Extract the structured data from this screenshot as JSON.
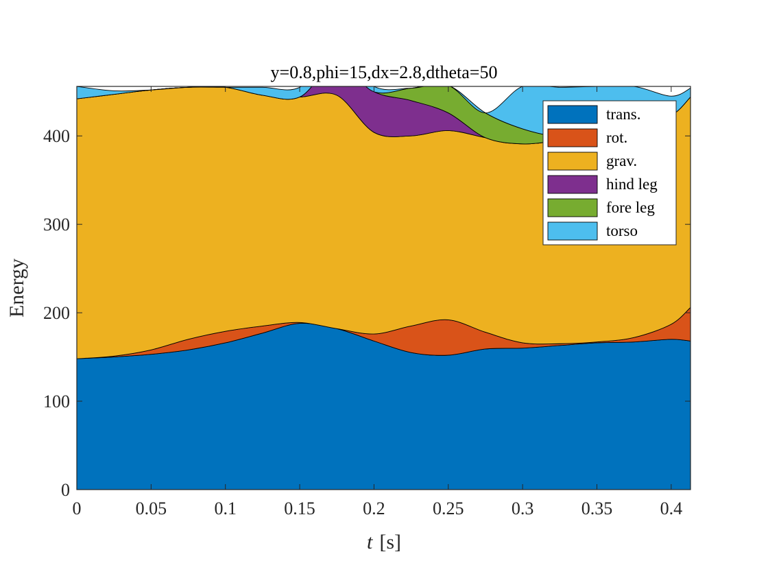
{
  "chart_data": {
    "type": "area",
    "stacked": true,
    "title": "y=0.8,phi=15,dx=2.8,dtheta=50",
    "xlabel_italic": "t",
    "xlabel_unit": "[s]",
    "ylabel": "Energy",
    "xlim": [
      0,
      0.413
    ],
    "ylim": [
      0,
      456
    ],
    "xticks": [
      0,
      0.05,
      0.1,
      0.15,
      0.2,
      0.25,
      0.3,
      0.35,
      0.4
    ],
    "xtick_labels": [
      "0",
      "0.05",
      "0.1",
      "0.15",
      "0.2",
      "0.25",
      "0.3",
      "0.35",
      "0.4"
    ],
    "yticks": [
      0,
      100,
      200,
      300,
      400
    ],
    "ytick_labels": [
      "0",
      "100",
      "200",
      "300",
      "400"
    ],
    "grid": false,
    "legend_position": "top-right",
    "x": [
      0,
      0.025,
      0.05,
      0.075,
      0.1,
      0.125,
      0.15,
      0.175,
      0.2,
      0.225,
      0.25,
      0.275,
      0.3,
      0.325,
      0.35,
      0.375,
      0.4,
      0.413
    ],
    "series": [
      {
        "name": "trans.",
        "color": "#0072BD",
        "values": [
          148,
          150,
          153,
          158,
          166,
          177,
          188,
          182,
          168,
          155,
          152,
          159,
          160,
          163,
          166,
          167,
          170,
          168
        ]
      },
      {
        "name": "rot.",
        "color": "#D95319",
        "values": [
          0,
          1,
          5,
          12,
          13,
          8,
          1,
          0,
          8,
          30,
          40,
          19,
          6,
          2,
          1,
          5,
          17,
          38
        ]
      },
      {
        "name": "grav.",
        "color": "#EDB120",
        "values": [
          294,
          296,
          294,
          285,
          276,
          261,
          255,
          264,
          228,
          215,
          214,
          220,
          225,
          230,
          233,
          235,
          236,
          238
        ]
      },
      {
        "name": "hind leg",
        "color": "#7E2F8E",
        "values": [
          0,
          0,
          0,
          0,
          0,
          0,
          0,
          36,
          46,
          40,
          20,
          0,
          0,
          0,
          0,
          0,
          0,
          0
        ]
      },
      {
        "name": "fore leg",
        "color": "#77AC30",
        "values": [
          0,
          0,
          0,
          0,
          0,
          0,
          0,
          0,
          0,
          14,
          31,
          28,
          17,
          4,
          0,
          0,
          0,
          0
        ]
      },
      {
        "name": "torso",
        "color": "#4DBEEE",
        "values": [
          14,
          4,
          0,
          0,
          0,
          9,
          11,
          13,
          6,
          0,
          0,
          0,
          48,
          56,
          56,
          49,
          22,
          10
        ]
      }
    ]
  }
}
